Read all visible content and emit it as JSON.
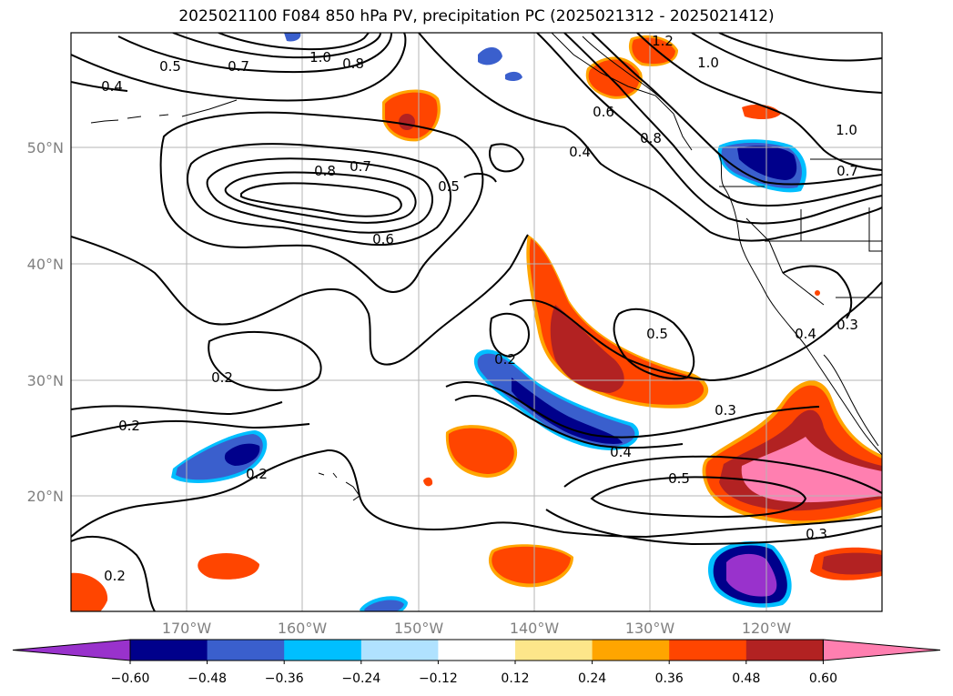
{
  "title": "2025021100 F084 850 hPa PV, precipitation PC (2025021312 - 2025021412)",
  "lon_labels": [
    "170°W",
    "160°W",
    "150°W",
    "140°W",
    "130°W",
    "120°W"
  ],
  "lat_labels": [
    "50°N",
    "40°N",
    "30°N",
    "20°N"
  ],
  "colorbar": {
    "colors": [
      "#9932cc",
      "#00008b",
      "#3a5fcd",
      "#00bfff",
      "#b0e2ff",
      "#ffffff",
      "#fde68a",
      "#ffa500",
      "#ff4500",
      "#b22222",
      "#ff7fb0"
    ],
    "ticks": [
      "−0.60",
      "−0.48",
      "−0.36",
      "−0.24",
      "−0.12",
      "0.12",
      "0.24",
      "0.36",
      "0.48",
      "0.60"
    ]
  },
  "contour_labels": [
    "0.5",
    "0.7",
    "1.0",
    "0.8",
    "1.2",
    "1.0",
    "0.4",
    "0.6",
    "0.8",
    "0.4",
    "1.0",
    "0.7",
    "0.8",
    "0.7",
    "0.5",
    "0.6",
    "0.5",
    "0.2",
    "0.2",
    "0.2",
    "0.4",
    "0.3",
    "0.5",
    "0.4",
    "0.3",
    "0.2",
    "0.2",
    "0.3"
  ]
}
